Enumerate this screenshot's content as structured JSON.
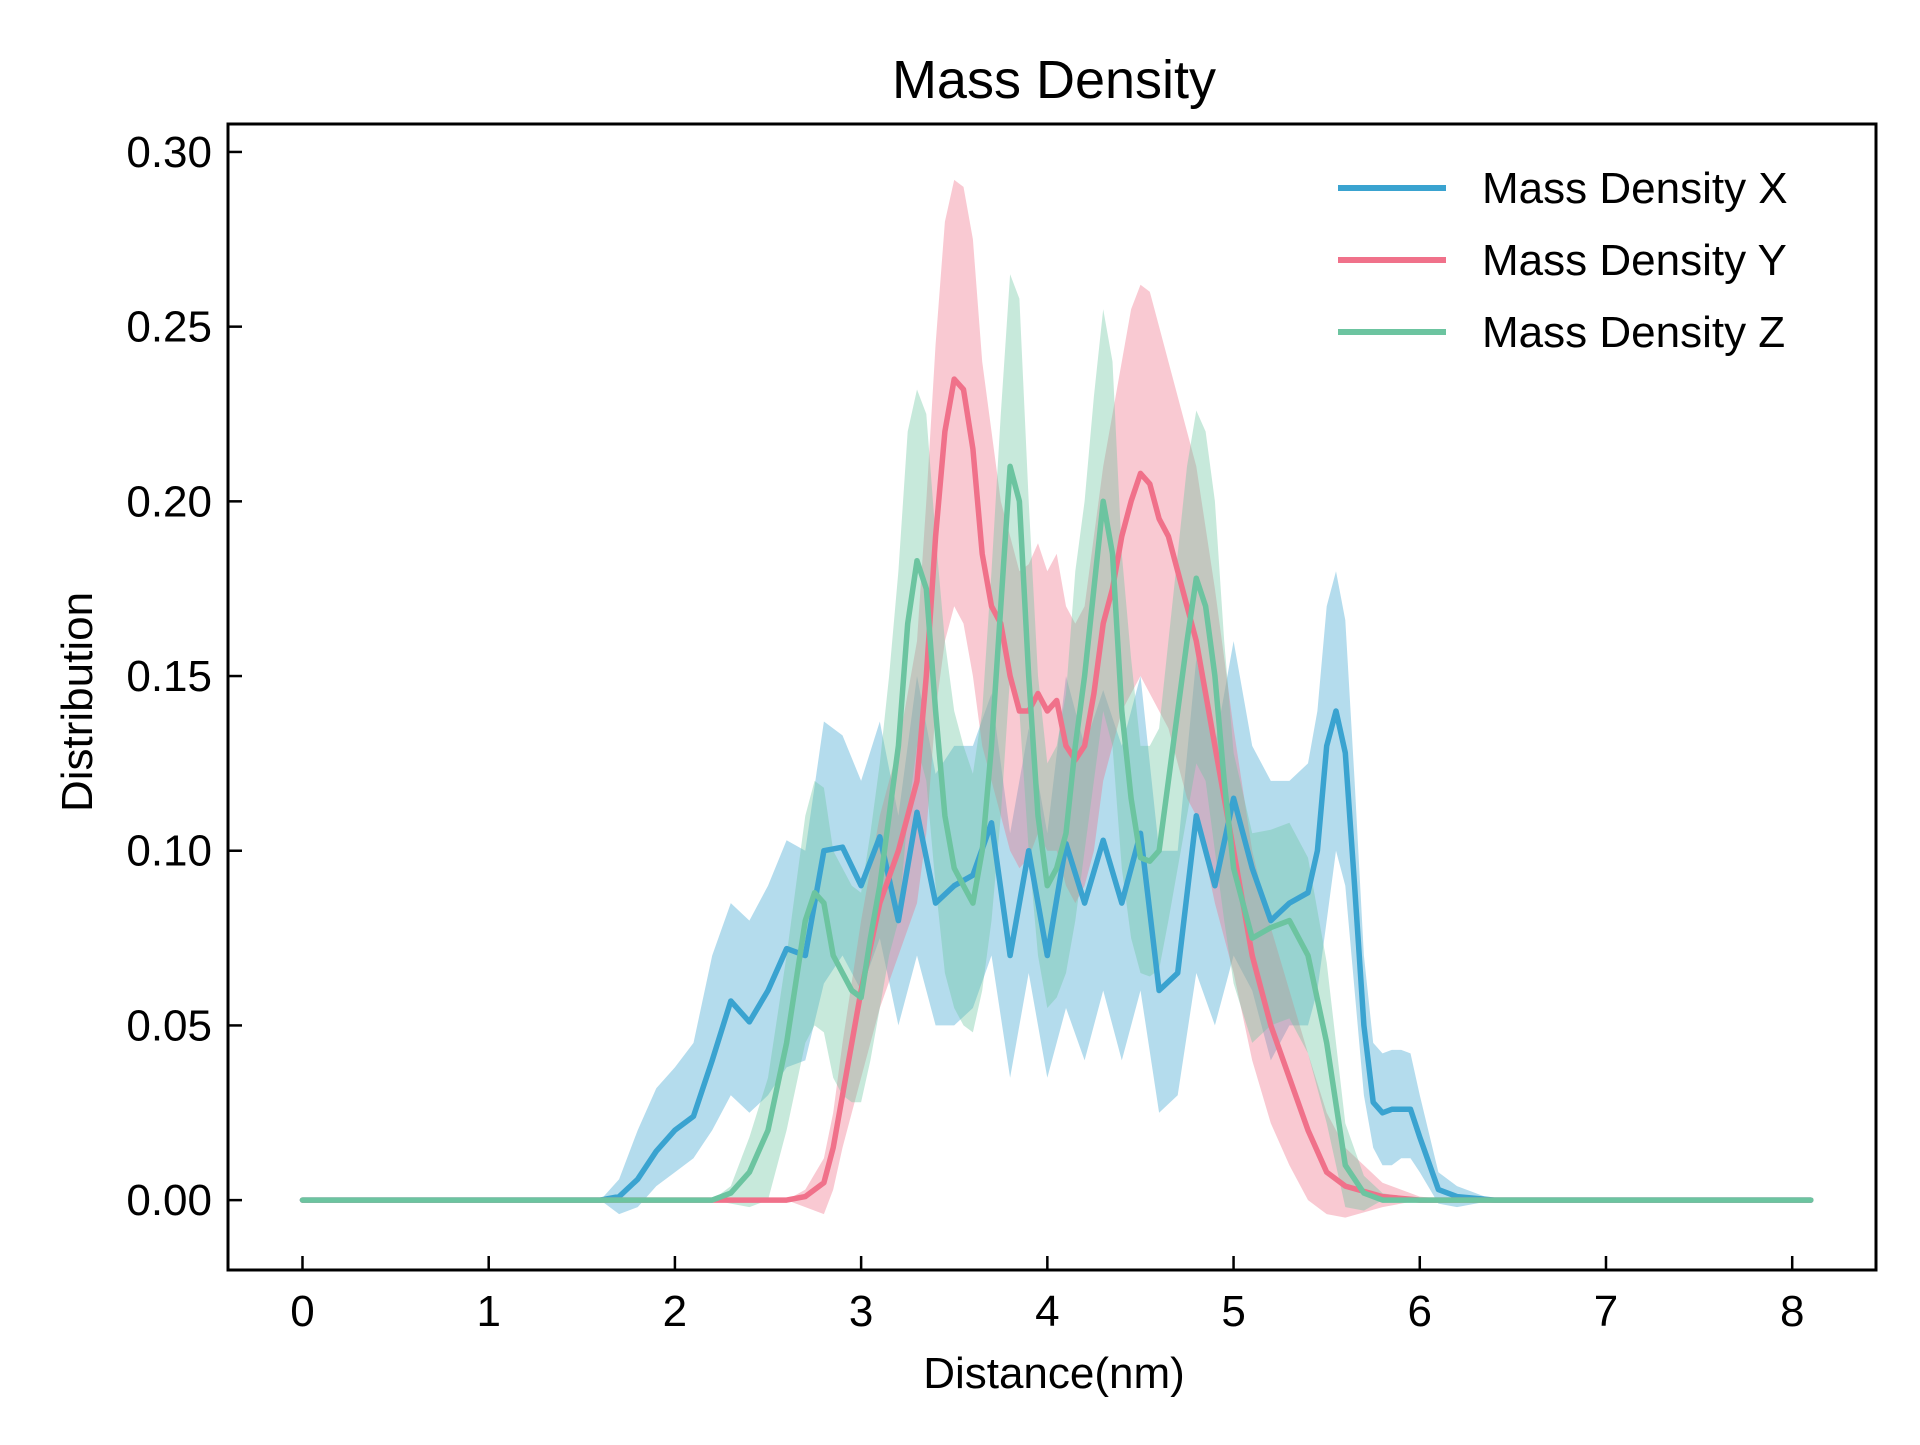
{
  "chart_data": {
    "type": "line",
    "title": "Mass Density",
    "xlabel": "Distance(nm)",
    "ylabel": "Distribution",
    "xlim": [
      -0.4,
      8.45
    ],
    "ylim": [
      -0.02,
      0.308
    ],
    "xticks": [
      0,
      1,
      2,
      3,
      4,
      5,
      6,
      7,
      8
    ],
    "xtick_labels": [
      "0",
      "1",
      "2",
      "3",
      "4",
      "5",
      "6",
      "7",
      "8"
    ],
    "yticks": [
      0.0,
      0.05,
      0.1,
      0.15,
      0.2,
      0.25,
      0.3
    ],
    "ytick_labels": [
      "0.00",
      "0.05",
      "0.10",
      "0.15",
      "0.20",
      "0.25",
      "0.30"
    ],
    "grid": false,
    "legend_position": "top-right",
    "band": "shaded band around each line (spread)",
    "series": [
      {
        "name": "Mass Density X",
        "color": "#3aa3d0",
        "x": [
          0.0,
          1.6,
          1.7,
          1.8,
          1.9,
          2.0,
          2.1,
          2.2,
          2.3,
          2.4,
          2.5,
          2.6,
          2.7,
          2.8,
          2.9,
          3.0,
          3.1,
          3.2,
          3.3,
          3.4,
          3.5,
          3.6,
          3.7,
          3.8,
          3.9,
          4.0,
          4.1,
          4.2,
          4.3,
          4.4,
          4.5,
          4.6,
          4.7,
          4.8,
          4.9,
          5.0,
          5.1,
          5.2,
          5.3,
          5.4,
          5.45,
          5.5,
          5.55,
          5.6,
          5.65,
          5.7,
          5.75,
          5.8,
          5.85,
          5.9,
          5.95,
          6.0,
          6.1,
          6.2,
          6.4,
          8.1
        ],
        "y": [
          0.0,
          0.0,
          0.001,
          0.006,
          0.014,
          0.02,
          0.024,
          0.04,
          0.057,
          0.051,
          0.06,
          0.072,
          0.07,
          0.1,
          0.101,
          0.09,
          0.104,
          0.08,
          0.111,
          0.085,
          0.09,
          0.093,
          0.108,
          0.07,
          0.1,
          0.07,
          0.102,
          0.085,
          0.103,
          0.085,
          0.105,
          0.06,
          0.065,
          0.11,
          0.09,
          0.115,
          0.095,
          0.08,
          0.085,
          0.088,
          0.1,
          0.13,
          0.14,
          0.128,
          0.09,
          0.05,
          0.028,
          0.025,
          0.026,
          0.026,
          0.026,
          0.018,
          0.003,
          0.001,
          0.0,
          0.0
        ],
        "band_lower": [
          0.0,
          0.0,
          -0.004,
          -0.002,
          0.004,
          0.008,
          0.012,
          0.02,
          0.03,
          0.025,
          0.03,
          0.038,
          0.04,
          0.062,
          0.07,
          0.06,
          0.075,
          0.05,
          0.07,
          0.05,
          0.05,
          0.055,
          0.07,
          0.035,
          0.065,
          0.035,
          0.055,
          0.04,
          0.06,
          0.04,
          0.06,
          0.025,
          0.03,
          0.065,
          0.05,
          0.07,
          0.06,
          0.04,
          0.05,
          0.05,
          0.06,
          0.08,
          0.1,
          0.09,
          0.06,
          0.03,
          0.015,
          0.01,
          0.01,
          0.012,
          0.012,
          0.008,
          -0.001,
          -0.002,
          0.0,
          0.0
        ],
        "band_upper": [
          0.0,
          0.0,
          0.006,
          0.02,
          0.032,
          0.038,
          0.045,
          0.07,
          0.085,
          0.08,
          0.09,
          0.103,
          0.1,
          0.137,
          0.133,
          0.12,
          0.137,
          0.11,
          0.15,
          0.122,
          0.13,
          0.13,
          0.145,
          0.105,
          0.135,
          0.105,
          0.15,
          0.13,
          0.146,
          0.13,
          0.15,
          0.1,
          0.1,
          0.155,
          0.13,
          0.16,
          0.13,
          0.12,
          0.12,
          0.125,
          0.14,
          0.17,
          0.18,
          0.166,
          0.12,
          0.07,
          0.045,
          0.042,
          0.043,
          0.043,
          0.042,
          0.03,
          0.008,
          0.004,
          0.0,
          0.0
        ]
      },
      {
        "name": "Mass Density Y",
        "color": "#f0718a",
        "x": [
          0.0,
          2.6,
          2.7,
          2.8,
          2.85,
          2.9,
          3.0,
          3.1,
          3.2,
          3.3,
          3.35,
          3.4,
          3.45,
          3.5,
          3.55,
          3.6,
          3.65,
          3.7,
          3.75,
          3.8,
          3.85,
          3.9,
          3.95,
          4.0,
          4.05,
          4.1,
          4.15,
          4.2,
          4.25,
          4.3,
          4.35,
          4.4,
          4.45,
          4.5,
          4.55,
          4.6,
          4.65,
          4.7,
          4.75,
          4.8,
          4.9,
          5.0,
          5.1,
          5.2,
          5.3,
          5.4,
          5.5,
          5.6,
          5.8,
          6.0,
          6.2,
          8.1
        ],
        "y": [
          0.0,
          0.0,
          0.001,
          0.005,
          0.015,
          0.03,
          0.06,
          0.085,
          0.1,
          0.12,
          0.15,
          0.19,
          0.22,
          0.235,
          0.232,
          0.215,
          0.185,
          0.17,
          0.165,
          0.15,
          0.14,
          0.14,
          0.145,
          0.14,
          0.143,
          0.13,
          0.126,
          0.13,
          0.145,
          0.165,
          0.175,
          0.19,
          0.2,
          0.208,
          0.205,
          0.195,
          0.19,
          0.18,
          0.17,
          0.16,
          0.13,
          0.1,
          0.07,
          0.05,
          0.035,
          0.02,
          0.008,
          0.004,
          0.001,
          0.0,
          0.0,
          0.0
        ],
        "band_lower": [
          0.0,
          0.0,
          -0.002,
          -0.004,
          0.003,
          0.015,
          0.035,
          0.055,
          0.07,
          0.085,
          0.105,
          0.14,
          0.16,
          0.17,
          0.165,
          0.15,
          0.13,
          0.12,
          0.11,
          0.1,
          0.095,
          0.098,
          0.105,
          0.1,
          0.1,
          0.09,
          0.085,
          0.09,
          0.1,
          0.12,
          0.13,
          0.14,
          0.145,
          0.15,
          0.145,
          0.14,
          0.135,
          0.125,
          0.115,
          0.11,
          0.085,
          0.065,
          0.04,
          0.022,
          0.01,
          0.0,
          -0.004,
          -0.005,
          -0.002,
          0.0,
          0.0,
          0.0
        ],
        "band_upper": [
          0.0,
          0.0,
          0.003,
          0.012,
          0.025,
          0.045,
          0.08,
          0.11,
          0.13,
          0.16,
          0.2,
          0.245,
          0.28,
          0.292,
          0.29,
          0.275,
          0.24,
          0.22,
          0.2,
          0.19,
          0.18,
          0.182,
          0.188,
          0.18,
          0.185,
          0.17,
          0.165,
          0.17,
          0.19,
          0.21,
          0.225,
          0.24,
          0.255,
          0.262,
          0.26,
          0.25,
          0.24,
          0.23,
          0.22,
          0.21,
          0.175,
          0.135,
          0.1,
          0.078,
          0.06,
          0.042,
          0.025,
          0.015,
          0.005,
          0.001,
          0.0,
          0.0
        ]
      },
      {
        "name": "Mass Density Z",
        "color": "#6cc4a0",
        "x": [
          0.0,
          2.2,
          2.3,
          2.4,
          2.5,
          2.6,
          2.7,
          2.75,
          2.8,
          2.85,
          2.9,
          2.95,
          3.0,
          3.05,
          3.1,
          3.15,
          3.2,
          3.25,
          3.3,
          3.35,
          3.4,
          3.45,
          3.5,
          3.55,
          3.6,
          3.65,
          3.7,
          3.75,
          3.8,
          3.85,
          3.9,
          3.95,
          4.0,
          4.05,
          4.1,
          4.15,
          4.2,
          4.25,
          4.3,
          4.35,
          4.4,
          4.45,
          4.5,
          4.55,
          4.6,
          4.65,
          4.7,
          4.75,
          4.8,
          4.85,
          4.9,
          4.95,
          5.0,
          5.1,
          5.2,
          5.3,
          5.4,
          5.5,
          5.6,
          5.7,
          5.8,
          6.0,
          8.1
        ],
        "y": [
          0.0,
          0.0,
          0.002,
          0.008,
          0.02,
          0.045,
          0.08,
          0.088,
          0.085,
          0.07,
          0.065,
          0.06,
          0.058,
          0.075,
          0.09,
          0.11,
          0.13,
          0.165,
          0.183,
          0.175,
          0.14,
          0.11,
          0.095,
          0.09,
          0.085,
          0.1,
          0.13,
          0.17,
          0.21,
          0.2,
          0.15,
          0.11,
          0.09,
          0.095,
          0.105,
          0.13,
          0.15,
          0.175,
          0.2,
          0.185,
          0.14,
          0.115,
          0.098,
          0.097,
          0.1,
          0.12,
          0.14,
          0.16,
          0.178,
          0.17,
          0.15,
          0.12,
          0.095,
          0.075,
          0.078,
          0.08,
          0.07,
          0.045,
          0.01,
          0.002,
          0.0,
          0.0,
          0.0
        ],
        "band_lower": [
          0.0,
          0.0,
          -0.001,
          -0.002,
          0.0,
          0.02,
          0.045,
          0.05,
          0.048,
          0.035,
          0.03,
          0.028,
          0.028,
          0.04,
          0.055,
          0.07,
          0.08,
          0.11,
          0.13,
          0.12,
          0.09,
          0.065,
          0.055,
          0.05,
          0.048,
          0.06,
          0.08,
          0.11,
          0.15,
          0.14,
          0.1,
          0.07,
          0.055,
          0.058,
          0.065,
          0.08,
          0.1,
          0.12,
          0.14,
          0.13,
          0.095,
          0.075,
          0.065,
          0.064,
          0.066,
          0.08,
          0.095,
          0.11,
          0.125,
          0.12,
          0.1,
          0.08,
          0.062,
          0.045,
          0.05,
          0.052,
          0.042,
          0.022,
          -0.002,
          -0.003,
          0.0,
          0.0,
          0.0
        ],
        "band_upper": [
          0.0,
          0.0,
          0.004,
          0.018,
          0.035,
          0.07,
          0.11,
          0.12,
          0.118,
          0.1,
          0.095,
          0.09,
          0.088,
          0.105,
          0.125,
          0.15,
          0.18,
          0.22,
          0.232,
          0.225,
          0.19,
          0.16,
          0.14,
          0.13,
          0.122,
          0.14,
          0.18,
          0.225,
          0.265,
          0.258,
          0.2,
          0.15,
          0.125,
          0.13,
          0.145,
          0.18,
          0.2,
          0.23,
          0.255,
          0.24,
          0.185,
          0.155,
          0.13,
          0.13,
          0.135,
          0.16,
          0.185,
          0.21,
          0.226,
          0.22,
          0.2,
          0.16,
          0.128,
          0.105,
          0.106,
          0.108,
          0.098,
          0.068,
          0.022,
          0.007,
          0.002,
          0.0,
          0.0
        ]
      }
    ]
  }
}
